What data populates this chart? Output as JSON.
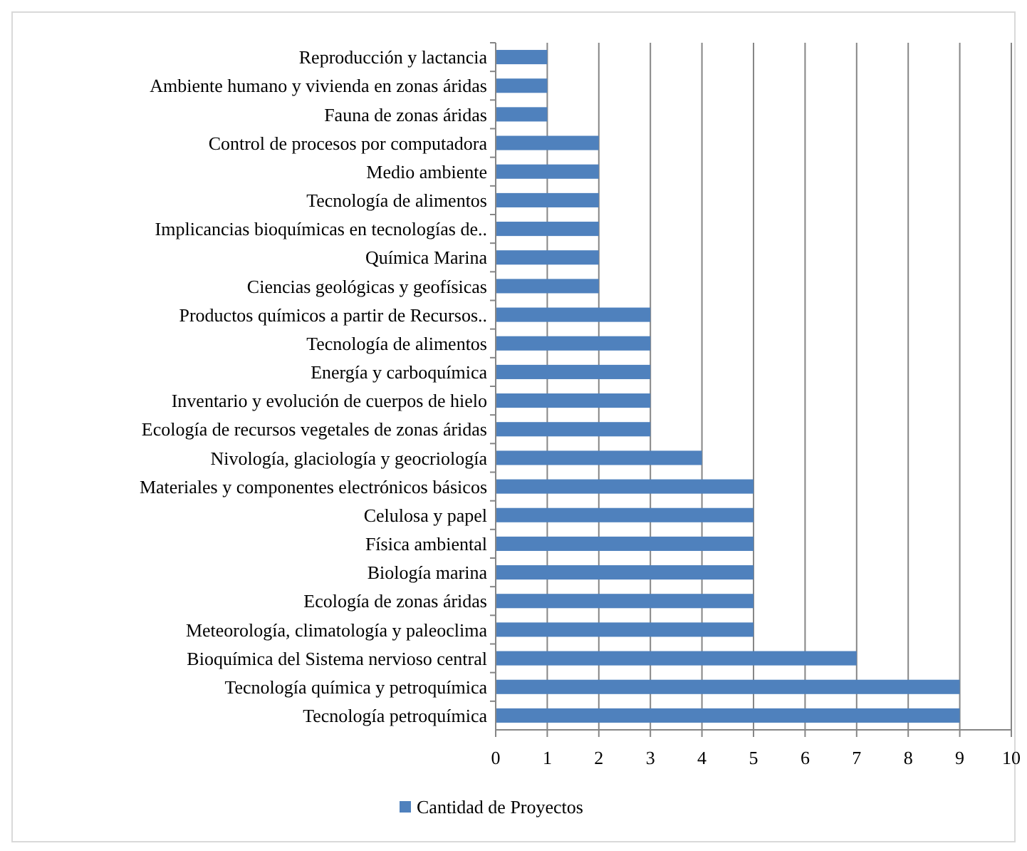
{
  "chart_data": {
    "type": "bar",
    "orientation": "horizontal",
    "categories": [
      "Reproducción y lactancia",
      "Ambiente humano y vivienda en zonas áridas",
      "Fauna de zonas áridas",
      "Control de procesos por computadora",
      "Medio ambiente",
      "Tecnología de alimentos",
      "Implicancias bioquímicas en tecnologías de..",
      "Química Marina",
      "Ciencias geológicas  y geofísicas",
      "Productos químicos a partir de Recursos..",
      "Tecnología de alimentos",
      "Energía y carboquímica",
      "Inventario y evolución de cuerpos de hielo",
      "Ecología de recursos vegetales de zonas áridas",
      "Nivología, glaciología  y geocriología",
      "Materiales y componentes electrónicos básicos",
      "Celulosa y papel",
      "Física ambiental",
      "Biología marina",
      "Ecología de zonas áridas",
      "Meteorología, climatología y paleoclima",
      "Bioquímica del Sistema nervioso central",
      "Tecnología química y petroquímica",
      "Tecnología petroquímica"
    ],
    "series": [
      {
        "name": "Cantidad de Proyectos",
        "color": "#4f81bd",
        "values": [
          1,
          1,
          1,
          2,
          2,
          2,
          2,
          2,
          2,
          3,
          3,
          3,
          3,
          3,
          4,
          5,
          5,
          5,
          5,
          5,
          5,
          7,
          9,
          9
        ]
      }
    ],
    "xlim": [
      0,
      10
    ],
    "xticks": [
      0,
      1,
      2,
      3,
      4,
      5,
      6,
      7,
      8,
      9,
      10
    ],
    "grid": "x",
    "legend": "bottom"
  }
}
